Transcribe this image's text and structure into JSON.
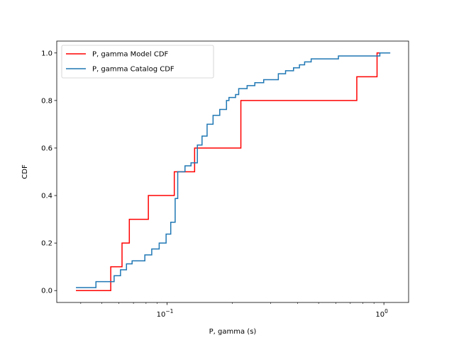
{
  "chart_data": {
    "type": "line",
    "step": true,
    "xlabel": "P, gamma (s)",
    "ylabel": "CDF",
    "xscale": "log",
    "xlim": [
      0.031,
      1.3
    ],
    "ylim": [
      -0.05,
      1.05
    ],
    "grid": false,
    "legend_position": "top-left",
    "x_ticks": [
      {
        "value": 0.1,
        "label": "10",
        "exp": "−1"
      },
      {
        "value": 1.0,
        "label": "10",
        "exp": "0"
      }
    ],
    "y_ticks": [
      {
        "value": 0.0,
        "label": "0.0"
      },
      {
        "value": 0.2,
        "label": "0.2"
      },
      {
        "value": 0.4,
        "label": "0.4"
      },
      {
        "value": 0.6,
        "label": "0.6"
      },
      {
        "value": 0.8,
        "label": "0.8"
      },
      {
        "value": 1.0,
        "label": "1.0"
      }
    ],
    "series": [
      {
        "name": "P, gamma Model CDF",
        "color": "#ff0000",
        "x": [
          0.038,
          0.055,
          0.062,
          0.067,
          0.082,
          0.108,
          0.134,
          0.219,
          0.75,
          0.93,
          0.975
        ],
        "y": [
          0.0,
          0.1,
          0.2,
          0.3,
          0.4,
          0.5,
          0.6,
          0.8,
          0.9,
          1.0,
          1.0
        ]
      },
      {
        "name": "P, gamma Catalog CDF",
        "color": "#1f77b4",
        "x": [
          0.038,
          0.047,
          0.057,
          0.061,
          0.065,
          0.069,
          0.079,
          0.085,
          0.092,
          0.099,
          0.104,
          0.109,
          0.112,
          0.121,
          0.129,
          0.138,
          0.145,
          0.153,
          0.163,
          0.175,
          0.188,
          0.193,
          0.207,
          0.214,
          0.234,
          0.254,
          0.279,
          0.326,
          0.352,
          0.383,
          0.408,
          0.431,
          0.462,
          0.617,
          0.958,
          1.07
        ],
        "y": [
          0.0125,
          0.0375,
          0.0625,
          0.0875,
          0.1125,
          0.125,
          0.15,
          0.175,
          0.2,
          0.2375,
          0.2875,
          0.3875,
          0.5,
          0.525,
          0.5375,
          0.6125,
          0.65,
          0.7,
          0.7375,
          0.7625,
          0.8,
          0.8125,
          0.825,
          0.85,
          0.8625,
          0.875,
          0.8875,
          0.9125,
          0.925,
          0.9375,
          0.95,
          0.9625,
          0.975,
          0.9875,
          1.0,
          1.0
        ]
      }
    ]
  }
}
